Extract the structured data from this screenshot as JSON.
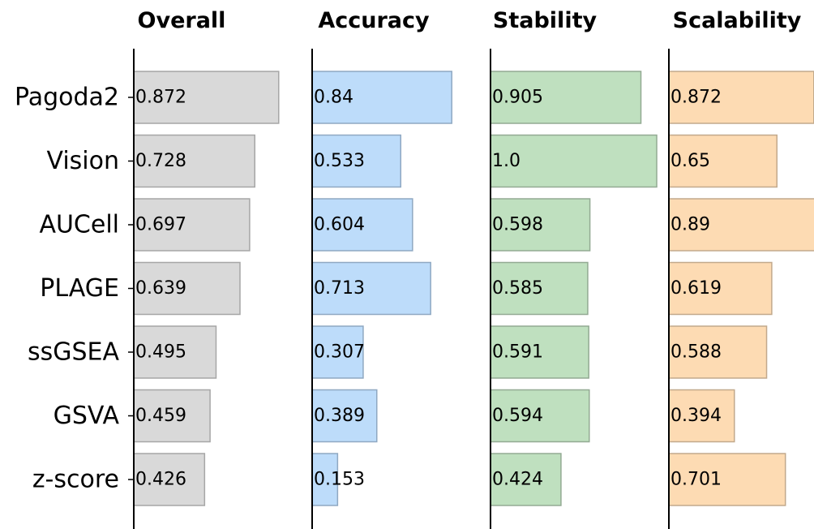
{
  "chart_data": {
    "type": "bar",
    "orientation": "horizontal",
    "categories": [
      "Pagoda2",
      "Vision",
      "AUCell",
      "PLAGE",
      "ssGSEA",
      "GSVA",
      "z-score"
    ],
    "xlim": [
      0,
      1
    ],
    "series": [
      {
        "name": "Overall",
        "color": "#d9d9d9",
        "edge": "#a6a6a6",
        "values": [
          0.872,
          0.728,
          0.697,
          0.639,
          0.495,
          0.459,
          0.426
        ],
        "labels": [
          "0.872",
          "0.728",
          "0.697",
          "0.639",
          "0.495",
          "0.459",
          "0.426"
        ]
      },
      {
        "name": "Accuracy",
        "color": "#bddcfa",
        "edge": "#8fa8c2",
        "values": [
          0.84,
          0.533,
          0.604,
          0.713,
          0.307,
          0.389,
          0.153
        ],
        "labels": [
          "0.84",
          "0.533",
          "0.604",
          "0.713",
          "0.307",
          "0.389",
          "0.153"
        ]
      },
      {
        "name": "Stability",
        "color": "#bfe0bf",
        "edge": "#93aa93",
        "values": [
          0.905,
          1.0,
          0.598,
          0.585,
          0.591,
          0.594,
          0.424
        ],
        "labels": [
          "0.905",
          "1.0",
          "0.598",
          "0.585",
          "0.591",
          "0.594",
          "0.424"
        ]
      },
      {
        "name": "Scalability",
        "color": "#fddbb3",
        "edge": "#c2a98c",
        "values": [
          0.872,
          0.65,
          0.89,
          0.619,
          0.588,
          0.394,
          0.701
        ],
        "labels": [
          "0.872",
          "0.65",
          "0.89",
          "0.619",
          "0.588",
          "0.394",
          "0.701"
        ]
      }
    ]
  }
}
